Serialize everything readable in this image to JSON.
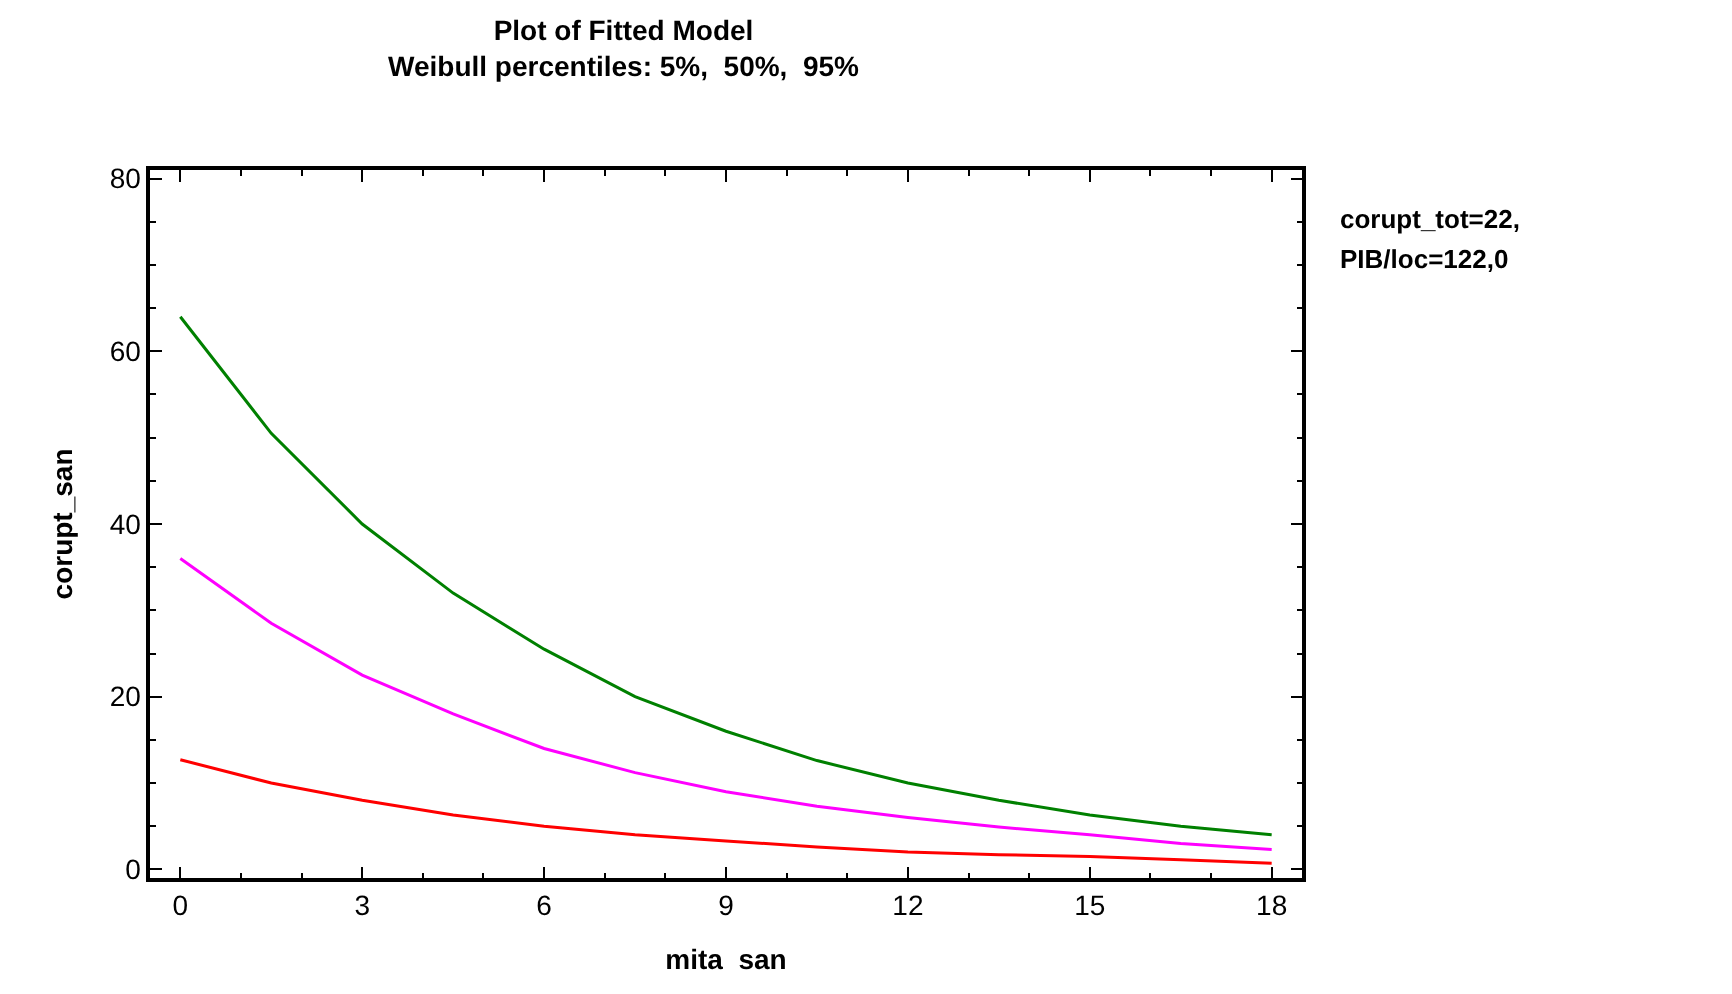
{
  "chart_data": {
    "type": "line",
    "title": "Plot of Fitted Model",
    "subtitle": "Weibull percentiles: 5%,  50%,  95%",
    "xlabel": "mita  san",
    "ylabel": "corupt_san",
    "x": [
      0,
      1.5,
      3,
      4.5,
      6,
      7.5,
      9,
      10.5,
      12,
      13.5,
      15,
      16.5,
      18
    ],
    "series": [
      {
        "color": "#008000",
        "values": [
          64,
          50.5,
          40,
          32,
          25.5,
          20,
          16,
          12.6,
          10,
          8,
          6.3,
          5,
          4
        ]
      },
      {
        "color": "#ff00ff",
        "values": [
          36,
          28.5,
          22.5,
          18,
          14,
          11.2,
          9,
          7.3,
          6,
          4.9,
          4,
          3,
          2.3
        ]
      },
      {
        "color": "#ff0000",
        "values": [
          12.7,
          10,
          8,
          6.3,
          5,
          4,
          3.3,
          2.6,
          2,
          1.7,
          1.5,
          1.1,
          0.7
        ]
      }
    ],
    "xlim": [
      -0.5,
      18.5
    ],
    "xticks": [
      0,
      3,
      6,
      9,
      12,
      15,
      18
    ],
    "ylim": [
      -1,
      81
    ],
    "yticks": [
      0,
      20,
      40,
      60,
      80
    ],
    "line_style": "solid",
    "marker": "none",
    "annotations": [
      "corupt_tot=22,",
      "PIB/loc=122,0"
    ]
  }
}
